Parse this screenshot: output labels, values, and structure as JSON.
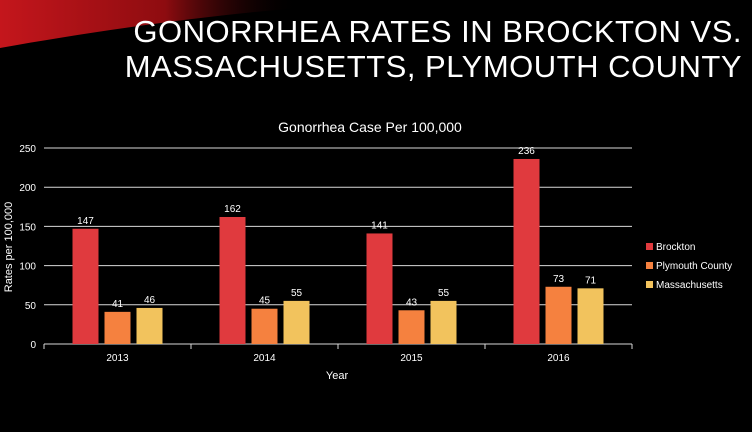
{
  "slide": {
    "title_line1": "Gonorrhea Rates in Brockton vs.",
    "title_line2": "Massachusetts, Plymouth County"
  },
  "chart_data": {
    "type": "bar",
    "title": "Gonorrhea Case  Per 100,000",
    "xlabel": "Year",
    "ylabel": "Rates per 100,000",
    "categories": [
      "2013",
      "2014",
      "2015",
      "2016"
    ],
    "ylim": [
      0,
      250
    ],
    "yticks": [
      0,
      50,
      100,
      150,
      200,
      250
    ],
    "grid": true,
    "legend_position": "right",
    "series": [
      {
        "name": "Brockton",
        "values": [
          147,
          162,
          141,
          236
        ],
        "color": "#e03a3e"
      },
      {
        "name": "Plymouth County",
        "values": [
          41,
          45,
          43,
          73
        ],
        "color": "#f5813f"
      },
      {
        "name": "Massachusetts",
        "values": [
          46,
          55,
          55,
          71
        ],
        "color": "#f2c35d"
      }
    ]
  },
  "colors": {
    "background": "#000000",
    "text": "#ffffff",
    "gridline": "#d9d9d9",
    "accent": "#c4161c"
  }
}
